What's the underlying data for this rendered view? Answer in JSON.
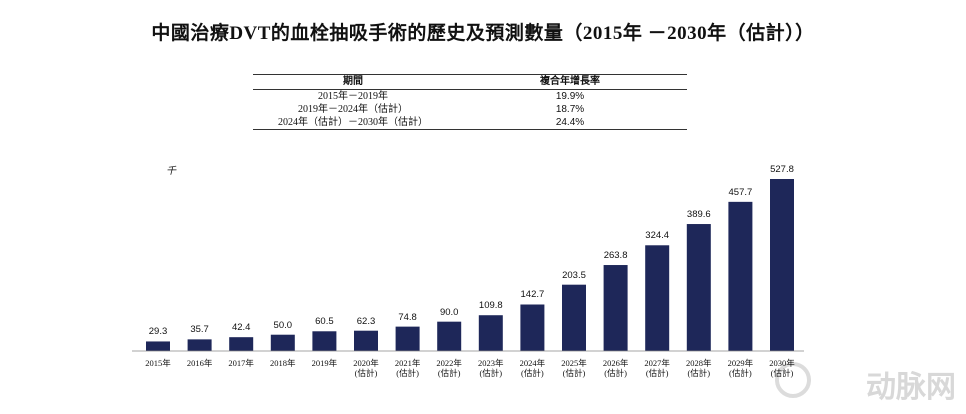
{
  "title": "中國治療DVT的血栓抽吸手術的歷史及預測數量（2015年 －2030年（估計））",
  "table": {
    "header": [
      "期間",
      "複合年增長率"
    ],
    "rows": [
      [
        "2015年－2019年",
        "19.9%"
      ],
      [
        "2019年－2024年（估計）",
        "18.7%"
      ],
      [
        "2024年（估計）－2030年（估計）",
        "24.4%"
      ]
    ]
  },
  "chart_data": {
    "type": "bar",
    "unit_label": "千",
    "categories": [
      "2015年",
      "2016年",
      "2017年",
      "2018年",
      "2019年",
      "2020年\n(估計)",
      "2021年\n(估計)",
      "2022年\n(估計)",
      "2023年\n(估計)",
      "2024年\n(估計)",
      "2025年\n(估計)",
      "2026年\n(估計)",
      "2027年\n(估計)",
      "2028年\n(估計)",
      "2029年\n(估計)",
      "2030年\n(估計)"
    ],
    "values": [
      29.3,
      35.7,
      42.4,
      50.0,
      60.5,
      62.3,
      74.8,
      90.0,
      109.8,
      142.7,
      203.5,
      263.8,
      324.4,
      389.6,
      457.7,
      527.8
    ],
    "value_labels": [
      "29.3",
      "35.7",
      "42.4",
      "50.0",
      "60.5",
      "62.3",
      "74.8",
      "90.0",
      "109.8",
      "142.7",
      "203.5",
      "263.8",
      "324.4",
      "389.6",
      "457.7",
      "527.8"
    ],
    "color": "#1e2759"
  },
  "watermark": "动脉网"
}
